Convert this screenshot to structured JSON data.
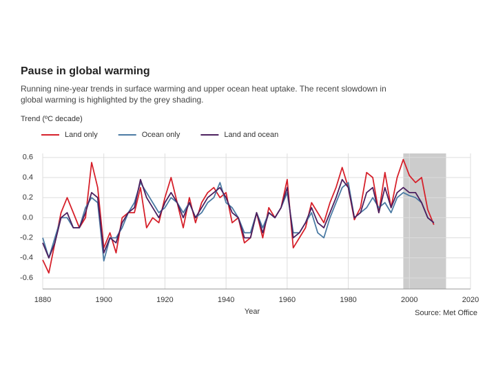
{
  "chart_data": {
    "type": "line",
    "title": "Pause in global warming",
    "subtitle": [
      "Running nine-year trends in surface warming and upper ocean heat uptake. The recent slowdown in",
      "global warming is highlighted by the grey shading."
    ],
    "y_label": "Trend (ºC decade)",
    "x_label": "Year",
    "source": "Source: Met Office",
    "x": [
      1880,
      1882,
      1884,
      1886,
      1888,
      1890,
      1892,
      1894,
      1896,
      1898,
      1900,
      1902,
      1904,
      1906,
      1908,
      1910,
      1912,
      1914,
      1916,
      1918,
      1920,
      1922,
      1924,
      1926,
      1928,
      1930,
      1932,
      1934,
      1936,
      1938,
      1940,
      1942,
      1944,
      1946,
      1948,
      1950,
      1952,
      1954,
      1956,
      1958,
      1960,
      1962,
      1964,
      1966,
      1968,
      1970,
      1972,
      1974,
      1976,
      1978,
      1980,
      1982,
      1984,
      1986,
      1988,
      1990,
      1992,
      1994,
      1996,
      1998,
      2000,
      2002,
      2004,
      2006,
      2008
    ],
    "series": [
      {
        "name": "Land only",
        "color": "#d6202a",
        "values": [
          -0.42,
          -0.55,
          -0.25,
          0.05,
          0.2,
          0.05,
          -0.1,
          0.0,
          0.55,
          0.3,
          -0.3,
          -0.15,
          -0.35,
          0.0,
          0.05,
          0.05,
          0.3,
          -0.1,
          0.0,
          -0.05,
          0.2,
          0.4,
          0.15,
          -0.1,
          0.2,
          -0.05,
          0.15,
          0.25,
          0.3,
          0.2,
          0.25,
          -0.05,
          0.0,
          -0.25,
          -0.2,
          0.05,
          -0.2,
          0.1,
          0.0,
          0.1,
          0.38,
          -0.3,
          -0.2,
          -0.1,
          0.15,
          0.05,
          -0.05,
          0.15,
          0.3,
          0.5,
          0.3,
          -0.02,
          0.1,
          0.45,
          0.4,
          0.05,
          0.45,
          0.1,
          0.4,
          0.58,
          0.42,
          0.35,
          0.4,
          0.08,
          -0.07
        ]
      },
      {
        "name": "Ocean only",
        "color": "#4a7aa3",
        "values": [
          -0.2,
          -0.4,
          -0.2,
          0.0,
          0.0,
          -0.1,
          -0.1,
          0.1,
          0.2,
          0.15,
          -0.43,
          -0.2,
          -0.2,
          -0.1,
          0.05,
          0.15,
          0.35,
          0.25,
          0.15,
          0.05,
          0.1,
          0.2,
          0.15,
          0.05,
          0.15,
          0.0,
          0.05,
          0.15,
          0.2,
          0.35,
          0.15,
          0.1,
          0.0,
          -0.15,
          -0.15,
          0.05,
          -0.1,
          0.05,
          0.0,
          0.1,
          0.25,
          -0.15,
          -0.15,
          -0.05,
          0.05,
          -0.15,
          -0.2,
          0.0,
          0.15,
          0.3,
          0.35,
          0.0,
          0.05,
          0.1,
          0.2,
          0.1,
          0.15,
          0.05,
          0.2,
          0.25,
          0.22,
          0.2,
          0.15,
          0.0,
          -0.05
        ]
      },
      {
        "name": "Land and ocean",
        "color": "#4b1f5e",
        "values": [
          -0.25,
          -0.4,
          -0.25,
          0.0,
          0.05,
          -0.1,
          -0.1,
          0.05,
          0.25,
          0.2,
          -0.35,
          -0.2,
          -0.25,
          -0.05,
          0.05,
          0.1,
          0.38,
          0.2,
          0.1,
          0.0,
          0.15,
          0.25,
          0.15,
          0.0,
          0.15,
          0.0,
          0.1,
          0.2,
          0.25,
          0.3,
          0.2,
          0.05,
          0.0,
          -0.2,
          -0.2,
          0.05,
          -0.15,
          0.05,
          0.0,
          0.1,
          0.3,
          -0.2,
          -0.15,
          -0.05,
          0.1,
          -0.05,
          -0.1,
          0.05,
          0.2,
          0.38,
          0.3,
          0.0,
          0.05,
          0.25,
          0.3,
          0.05,
          0.3,
          0.1,
          0.25,
          0.3,
          0.25,
          0.25,
          0.15,
          0.0,
          -0.05
        ]
      }
    ],
    "shade": [
      1998,
      2012
    ],
    "shade_color": "#cccccc",
    "xlim": [
      1880,
      2020
    ],
    "xticks": [
      1880,
      1900,
      1920,
      1940,
      1960,
      1980,
      2000,
      2020
    ],
    "ylim": [
      -0.71,
      0.64
    ],
    "yticks": [
      0.6,
      0.4,
      0.2,
      {
        "value": 0,
        "label": "0.0"
      },
      -0.2,
      -0.4,
      -0.6
    ],
    "grid": true
  }
}
